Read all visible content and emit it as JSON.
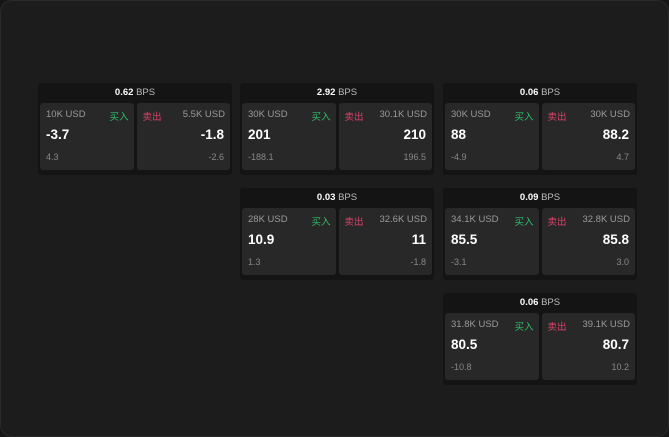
{
  "colors": {
    "buy": "#2fbf6a",
    "sell": "#e0406a"
  },
  "buy_label": "买入",
  "sell_label": "卖出",
  "unit": "BPS",
  "cards": [
    {
      "spread": "0.62",
      "buy": {
        "size": "10K USD",
        "price": "-3.7",
        "change": "4.3"
      },
      "sell": {
        "size": "5.5K USD",
        "price": "-1.8",
        "change": "-2.6"
      }
    },
    {
      "spread": "2.92",
      "buy": {
        "size": "30K USD",
        "price": "201",
        "change": "-188.1"
      },
      "sell": {
        "size": "30.1K USD",
        "price": "210",
        "change": "196.5"
      }
    },
    {
      "spread": "0.06",
      "buy": {
        "size": "30K USD",
        "price": "88",
        "change": "-4.9"
      },
      "sell": {
        "size": "30K USD",
        "price": "88.2",
        "change": "4.7"
      }
    },
    {
      "spread": "0.03",
      "buy": {
        "size": "28K USD",
        "price": "10.9",
        "change": "1.3"
      },
      "sell": {
        "size": "32.6K USD",
        "price": "11",
        "change": "-1.8"
      }
    },
    {
      "spread": "0.09",
      "buy": {
        "size": "34.1K USD",
        "price": "85.5",
        "change": "-3.1"
      },
      "sell": {
        "size": "32.8K USD",
        "price": "85.8",
        "change": "3.0"
      }
    },
    {
      "spread": "0.06",
      "buy": {
        "size": "31.8K USD",
        "price": "80.5",
        "change": "-10.8"
      },
      "sell": {
        "size": "39.1K USD",
        "price": "80.7",
        "change": "10.2"
      }
    }
  ]
}
